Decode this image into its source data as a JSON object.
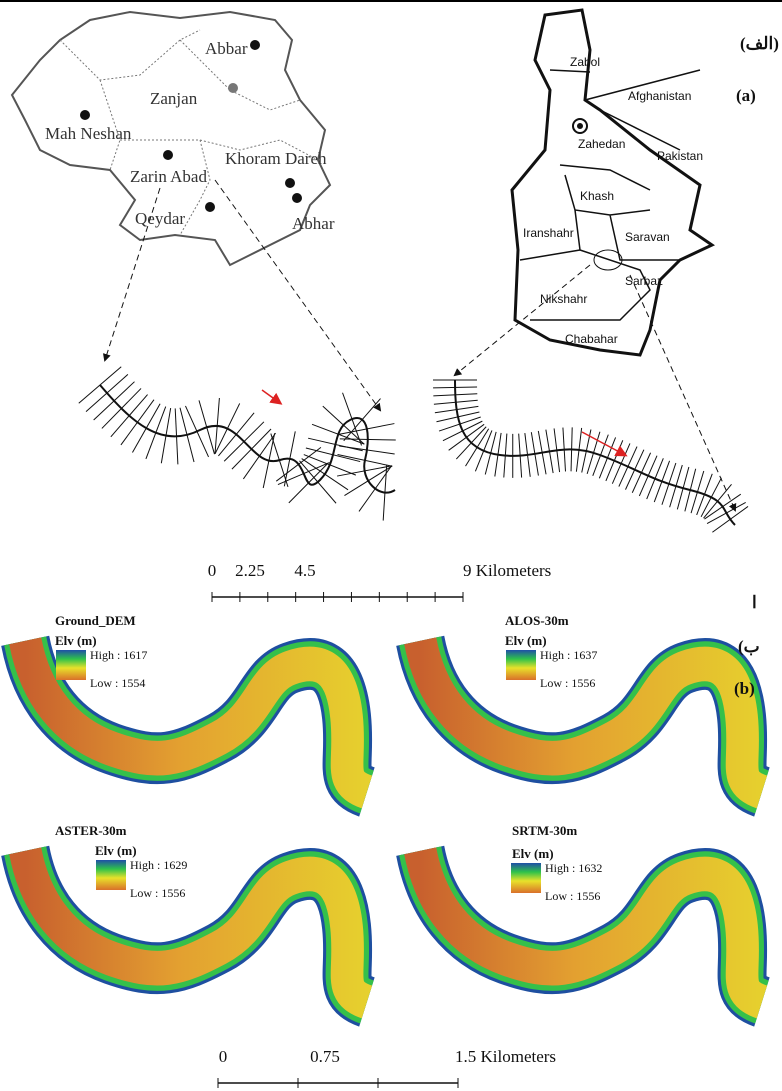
{
  "figure_a": {
    "label_fa": "(الف)",
    "label_en": "(a)",
    "zanjan_map": {
      "places": [
        "Abbar",
        "Zanjan",
        "Mah Neshan",
        "Khoram Dareh",
        "Zarin Abad",
        "Abhar",
        "Qeydar"
      ]
    },
    "sistan_map": {
      "places": [
        "Zabol",
        "Afghanistan",
        "Zahedan",
        "Pakistan",
        "Khash",
        "Iranshahr",
        "Saravan",
        "Sarbaz",
        "Nikshahr",
        "Chabahar"
      ]
    },
    "scale_bar": {
      "labels": [
        "0",
        "2.25",
        "4.5",
        "9 Kilometers"
      ]
    }
  },
  "separator": "ا",
  "figure_b": {
    "label_fa": "(ب",
    "label_en": "(b)",
    "panels": [
      {
        "title": "Ground_DEM",
        "legend_title": "Elv (m)",
        "high": "High : 1617",
        "low": "Low : 1554"
      },
      {
        "title": "ALOS-30m",
        "legend_title": "Elv (m)",
        "high": "High : 1637",
        "low": "Low : 1556"
      },
      {
        "title": "ASTER-30m",
        "legend_title": "Elv (m)",
        "high": "High : 1629",
        "low": "Low : 1556"
      },
      {
        "title": "SRTM-30m",
        "legend_title": "Elv (m)",
        "high": "High : 1632",
        "low": "Low : 1556"
      }
    ],
    "scale_bar": {
      "labels": [
        "0",
        "0.75",
        "1.5 Kilometers"
      ]
    }
  }
}
